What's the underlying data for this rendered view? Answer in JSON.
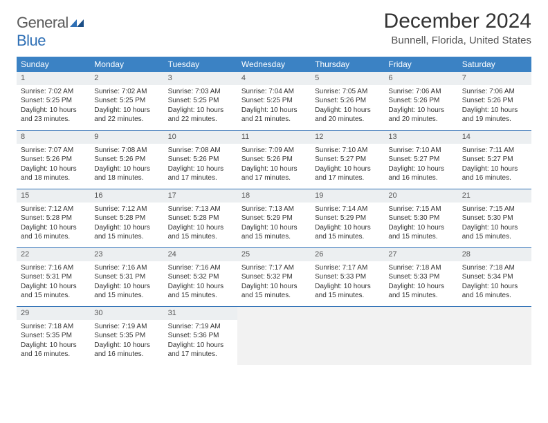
{
  "brand": {
    "general": "General",
    "blue": "Blue"
  },
  "title": "December 2024",
  "location": "Bunnell, Florida, United States",
  "colors": {
    "header_bg": "#3b82c4",
    "border": "#2e6fb5",
    "daynum_bg": "#eceff1",
    "empty_bg": "#f2f2f2",
    "text": "#333333",
    "logo_gray": "#5a5a5a",
    "logo_blue": "#2e6fb5"
  },
  "day_names": [
    "Sunday",
    "Monday",
    "Tuesday",
    "Wednesday",
    "Thursday",
    "Friday",
    "Saturday"
  ],
  "days": [
    {
      "n": "1",
      "sr": "Sunrise: 7:02 AM",
      "ss": "Sunset: 5:25 PM",
      "d1": "Daylight: 10 hours",
      "d2": "and 23 minutes."
    },
    {
      "n": "2",
      "sr": "Sunrise: 7:02 AM",
      "ss": "Sunset: 5:25 PM",
      "d1": "Daylight: 10 hours",
      "d2": "and 22 minutes."
    },
    {
      "n": "3",
      "sr": "Sunrise: 7:03 AM",
      "ss": "Sunset: 5:25 PM",
      "d1": "Daylight: 10 hours",
      "d2": "and 22 minutes."
    },
    {
      "n": "4",
      "sr": "Sunrise: 7:04 AM",
      "ss": "Sunset: 5:25 PM",
      "d1": "Daylight: 10 hours",
      "d2": "and 21 minutes."
    },
    {
      "n": "5",
      "sr": "Sunrise: 7:05 AM",
      "ss": "Sunset: 5:26 PM",
      "d1": "Daylight: 10 hours",
      "d2": "and 20 minutes."
    },
    {
      "n": "6",
      "sr": "Sunrise: 7:06 AM",
      "ss": "Sunset: 5:26 PM",
      "d1": "Daylight: 10 hours",
      "d2": "and 20 minutes."
    },
    {
      "n": "7",
      "sr": "Sunrise: 7:06 AM",
      "ss": "Sunset: 5:26 PM",
      "d1": "Daylight: 10 hours",
      "d2": "and 19 minutes."
    },
    {
      "n": "8",
      "sr": "Sunrise: 7:07 AM",
      "ss": "Sunset: 5:26 PM",
      "d1": "Daylight: 10 hours",
      "d2": "and 18 minutes."
    },
    {
      "n": "9",
      "sr": "Sunrise: 7:08 AM",
      "ss": "Sunset: 5:26 PM",
      "d1": "Daylight: 10 hours",
      "d2": "and 18 minutes."
    },
    {
      "n": "10",
      "sr": "Sunrise: 7:08 AM",
      "ss": "Sunset: 5:26 PM",
      "d1": "Daylight: 10 hours",
      "d2": "and 17 minutes."
    },
    {
      "n": "11",
      "sr": "Sunrise: 7:09 AM",
      "ss": "Sunset: 5:26 PM",
      "d1": "Daylight: 10 hours",
      "d2": "and 17 minutes."
    },
    {
      "n": "12",
      "sr": "Sunrise: 7:10 AM",
      "ss": "Sunset: 5:27 PM",
      "d1": "Daylight: 10 hours",
      "d2": "and 17 minutes."
    },
    {
      "n": "13",
      "sr": "Sunrise: 7:10 AM",
      "ss": "Sunset: 5:27 PM",
      "d1": "Daylight: 10 hours",
      "d2": "and 16 minutes."
    },
    {
      "n": "14",
      "sr": "Sunrise: 7:11 AM",
      "ss": "Sunset: 5:27 PM",
      "d1": "Daylight: 10 hours",
      "d2": "and 16 minutes."
    },
    {
      "n": "15",
      "sr": "Sunrise: 7:12 AM",
      "ss": "Sunset: 5:28 PM",
      "d1": "Daylight: 10 hours",
      "d2": "and 16 minutes."
    },
    {
      "n": "16",
      "sr": "Sunrise: 7:12 AM",
      "ss": "Sunset: 5:28 PM",
      "d1": "Daylight: 10 hours",
      "d2": "and 15 minutes."
    },
    {
      "n": "17",
      "sr": "Sunrise: 7:13 AM",
      "ss": "Sunset: 5:28 PM",
      "d1": "Daylight: 10 hours",
      "d2": "and 15 minutes."
    },
    {
      "n": "18",
      "sr": "Sunrise: 7:13 AM",
      "ss": "Sunset: 5:29 PM",
      "d1": "Daylight: 10 hours",
      "d2": "and 15 minutes."
    },
    {
      "n": "19",
      "sr": "Sunrise: 7:14 AM",
      "ss": "Sunset: 5:29 PM",
      "d1": "Daylight: 10 hours",
      "d2": "and 15 minutes."
    },
    {
      "n": "20",
      "sr": "Sunrise: 7:15 AM",
      "ss": "Sunset: 5:30 PM",
      "d1": "Daylight: 10 hours",
      "d2": "and 15 minutes."
    },
    {
      "n": "21",
      "sr": "Sunrise: 7:15 AM",
      "ss": "Sunset: 5:30 PM",
      "d1": "Daylight: 10 hours",
      "d2": "and 15 minutes."
    },
    {
      "n": "22",
      "sr": "Sunrise: 7:16 AM",
      "ss": "Sunset: 5:31 PM",
      "d1": "Daylight: 10 hours",
      "d2": "and 15 minutes."
    },
    {
      "n": "23",
      "sr": "Sunrise: 7:16 AM",
      "ss": "Sunset: 5:31 PM",
      "d1": "Daylight: 10 hours",
      "d2": "and 15 minutes."
    },
    {
      "n": "24",
      "sr": "Sunrise: 7:16 AM",
      "ss": "Sunset: 5:32 PM",
      "d1": "Daylight: 10 hours",
      "d2": "and 15 minutes."
    },
    {
      "n": "25",
      "sr": "Sunrise: 7:17 AM",
      "ss": "Sunset: 5:32 PM",
      "d1": "Daylight: 10 hours",
      "d2": "and 15 minutes."
    },
    {
      "n": "26",
      "sr": "Sunrise: 7:17 AM",
      "ss": "Sunset: 5:33 PM",
      "d1": "Daylight: 10 hours",
      "d2": "and 15 minutes."
    },
    {
      "n": "27",
      "sr": "Sunrise: 7:18 AM",
      "ss": "Sunset: 5:33 PM",
      "d1": "Daylight: 10 hours",
      "d2": "and 15 minutes."
    },
    {
      "n": "28",
      "sr": "Sunrise: 7:18 AM",
      "ss": "Sunset: 5:34 PM",
      "d1": "Daylight: 10 hours",
      "d2": "and 16 minutes."
    },
    {
      "n": "29",
      "sr": "Sunrise: 7:18 AM",
      "ss": "Sunset: 5:35 PM",
      "d1": "Daylight: 10 hours",
      "d2": "and 16 minutes."
    },
    {
      "n": "30",
      "sr": "Sunrise: 7:19 AM",
      "ss": "Sunset: 5:35 PM",
      "d1": "Daylight: 10 hours",
      "d2": "and 16 minutes."
    },
    {
      "n": "31",
      "sr": "Sunrise: 7:19 AM",
      "ss": "Sunset: 5:36 PM",
      "d1": "Daylight: 10 hours",
      "d2": "and 17 minutes."
    }
  ]
}
